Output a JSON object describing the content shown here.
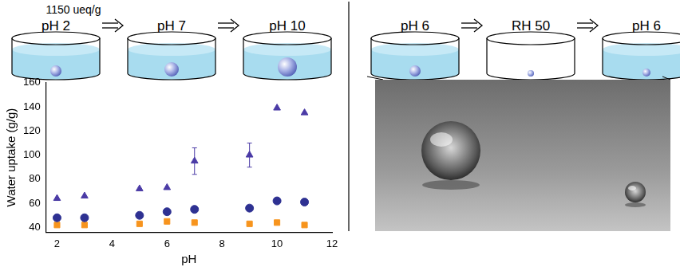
{
  "left_panel": {
    "annotation": "1150 ueq/g",
    "dish_labels": [
      "pH 2",
      "pH 7",
      "pH 10"
    ]
  },
  "right_panel": {
    "dish_labels": [
      "pH 6",
      "RH 50",
      "pH 6"
    ]
  },
  "chart_data": {
    "type": "scatter",
    "x_label": "pH",
    "y_label": "Water uptake (g/g)",
    "x": [
      2,
      3,
      5,
      6,
      7,
      9,
      10,
      11
    ],
    "xlim": [
      1.6,
      12
    ],
    "xticks": [
      2,
      4,
      6,
      8,
      10,
      12
    ],
    "ylim": [
      36,
      160
    ],
    "yticks": [
      40,
      60,
      80,
      100,
      120,
      140,
      160
    ],
    "grid": false,
    "series": [
      {
        "color": "#4b3ba6",
        "marker": "triangle",
        "values": [
          64,
          66,
          72,
          73,
          95,
          100,
          139,
          135
        ],
        "errors": [
          null,
          null,
          null,
          null,
          11,
          10,
          null,
          null
        ]
      },
      {
        "color": "#2e3192",
        "marker": "circle",
        "values": [
          48,
          48,
          50,
          53,
          55,
          56,
          62,
          61
        ]
      },
      {
        "color": "#f7941d",
        "marker": "square",
        "values": [
          42,
          42,
          43,
          45,
          44,
          43,
          44,
          42
        ]
      }
    ]
  }
}
